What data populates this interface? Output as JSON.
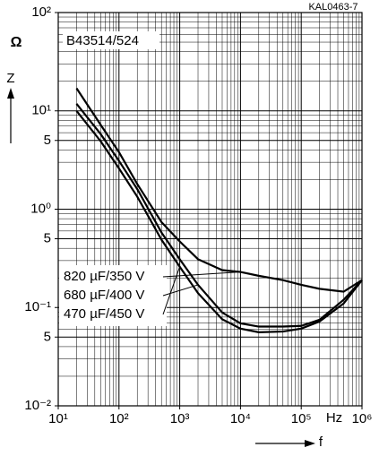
{
  "chart_data": {
    "type": "line",
    "code": "KAL0463-7",
    "title": "B43514/524",
    "y_label": "Z",
    "y_unit": "Ω",
    "x_label": "f",
    "x_unit": "Hz",
    "xscale": "log",
    "yscale": "log",
    "grid": true,
    "xlim": [
      10,
      1000000
    ],
    "ylim": [
      0.01,
      100
    ],
    "xticks": [
      {
        "value": 10,
        "label": "10¹"
      },
      {
        "value": 100,
        "label": "10²"
      },
      {
        "value": 1000,
        "label": "10³"
      },
      {
        "value": 10000,
        "label": "10⁴"
      },
      {
        "value": 100000,
        "label": "10⁵"
      },
      {
        "value": 1000000,
        "label": "10⁶"
      }
    ],
    "yticks": [
      {
        "value": 0.01,
        "label": "10⁻²"
      },
      {
        "value": 0.05,
        "label": "5"
      },
      {
        "value": 0.1,
        "label": "10⁻¹"
      },
      {
        "value": 0.5,
        "label": "5"
      },
      {
        "value": 1,
        "label": "10⁰"
      },
      {
        "value": 5,
        "label": "5"
      },
      {
        "value": 10,
        "label": "10¹"
      },
      {
        "value": 100,
        "label": "10²"
      }
    ],
    "x": [
      20,
      50,
      100,
      200,
      500,
      1000,
      2000,
      5000,
      10000,
      20000,
      50000,
      100000,
      200000,
      500000,
      1000000
    ],
    "series": [
      {
        "name": "820 µF/350 V",
        "color": "#000000",
        "values": [
          17,
          7.2,
          3.8,
          1.8,
          0.74,
          0.47,
          0.31,
          0.24,
          0.23,
          0.21,
          0.19,
          0.17,
          0.155,
          0.145,
          0.19
        ]
      },
      {
        "name": "680 µF/400 V",
        "color": "#000000",
        "values": [
          11.8,
          5.8,
          3.1,
          1.6,
          0.58,
          0.31,
          0.17,
          0.089,
          0.069,
          0.064,
          0.064,
          0.065,
          0.075,
          0.12,
          0.19
        ]
      },
      {
        "name": "470 µF/450 V",
        "color": "#000000",
        "values": [
          10,
          4.9,
          2.6,
          1.34,
          0.49,
          0.26,
          0.14,
          0.076,
          0.061,
          0.056,
          0.057,
          0.061,
          0.072,
          0.11,
          0.19
        ]
      }
    ]
  }
}
